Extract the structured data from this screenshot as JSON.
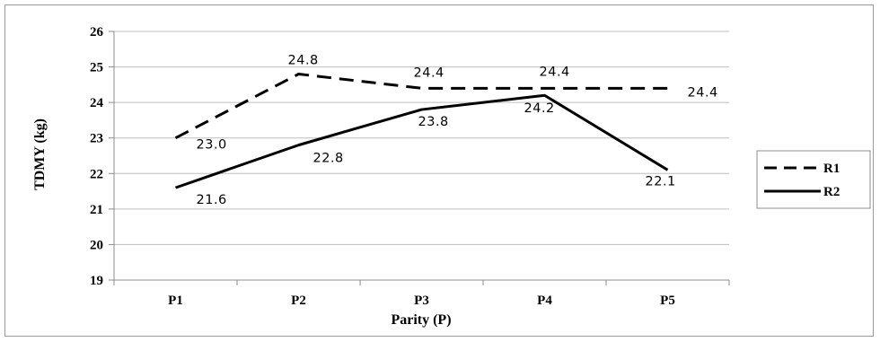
{
  "chart_data": {
    "type": "line",
    "categories": [
      "P1",
      "P2",
      "P3",
      "P4",
      "P5"
    ],
    "series": [
      {
        "name": "R1",
        "values": [
          23.0,
          24.8,
          24.4,
          24.4,
          24.4
        ],
        "labels": [
          "23.0",
          "24.8",
          "24.4",
          "24.4",
          "24.4"
        ],
        "style": "dashed"
      },
      {
        "name": "R2",
        "values": [
          21.6,
          22.8,
          23.8,
          24.2,
          22.1
        ],
        "labels": [
          "21.6",
          "22.8",
          "23.8",
          "24.2",
          "22.1"
        ],
        "style": "solid"
      }
    ],
    "xlabel": "Parity (P)",
    "ylabel": "TDMY (kg)",
    "ylim": [
      19,
      26
    ],
    "yticks": [
      "19",
      "20",
      "21",
      "22",
      "23",
      "24",
      "25",
      "26"
    ],
    "grid": "horizontal",
    "legend": "right",
    "colors": {
      "line": "#000000",
      "grid": "#bdbdbd",
      "axis": "#8c8c8c"
    }
  }
}
